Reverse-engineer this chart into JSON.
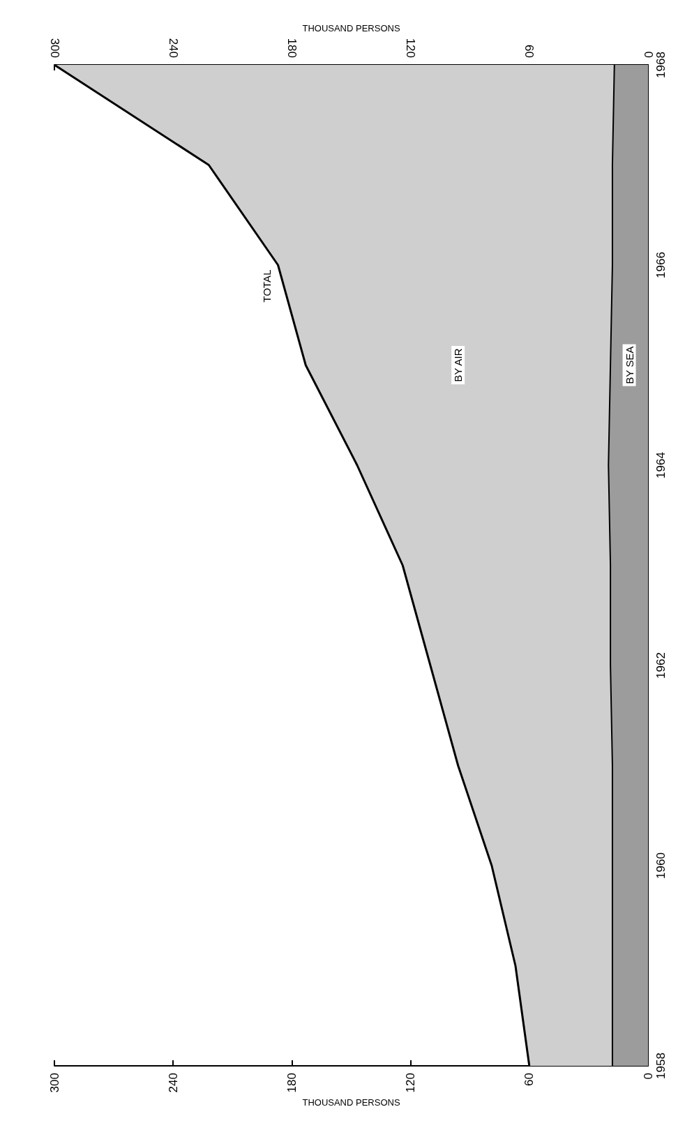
{
  "chart_data": {
    "type": "area",
    "stacked": true,
    "orientation": "horizontal",
    "categories": [
      "1968",
      null,
      "1966",
      null,
      "1964",
      null,
      "1962",
      null,
      "1960",
      null,
      "1958"
    ],
    "series": [
      {
        "name": "BY SEA",
        "color": "#9c9c9c",
        "values": [
          17,
          18,
          18,
          19,
          20,
          19,
          19,
          18,
          18,
          18,
          18
        ]
      },
      {
        "name": "BY AIR",
        "color": "#cfcfcf",
        "values": [
          283,
          204,
          169,
          154,
          127,
          105,
          91,
          78,
          61,
          49,
          42
        ]
      }
    ],
    "xlim": [
      300,
      0
    ],
    "xticks": [
      0,
      60,
      120,
      180,
      240,
      300
    ],
    "xlabel": "THOUSAND PERSONS",
    "x2lim": [
      300,
      0
    ],
    "x2ticks": [
      0,
      60,
      120,
      180,
      240,
      300
    ],
    "x2label": "THOUSAND PERSONS",
    "annotations": [
      "TOTAL"
    ],
    "grid": false,
    "legend": false
  }
}
